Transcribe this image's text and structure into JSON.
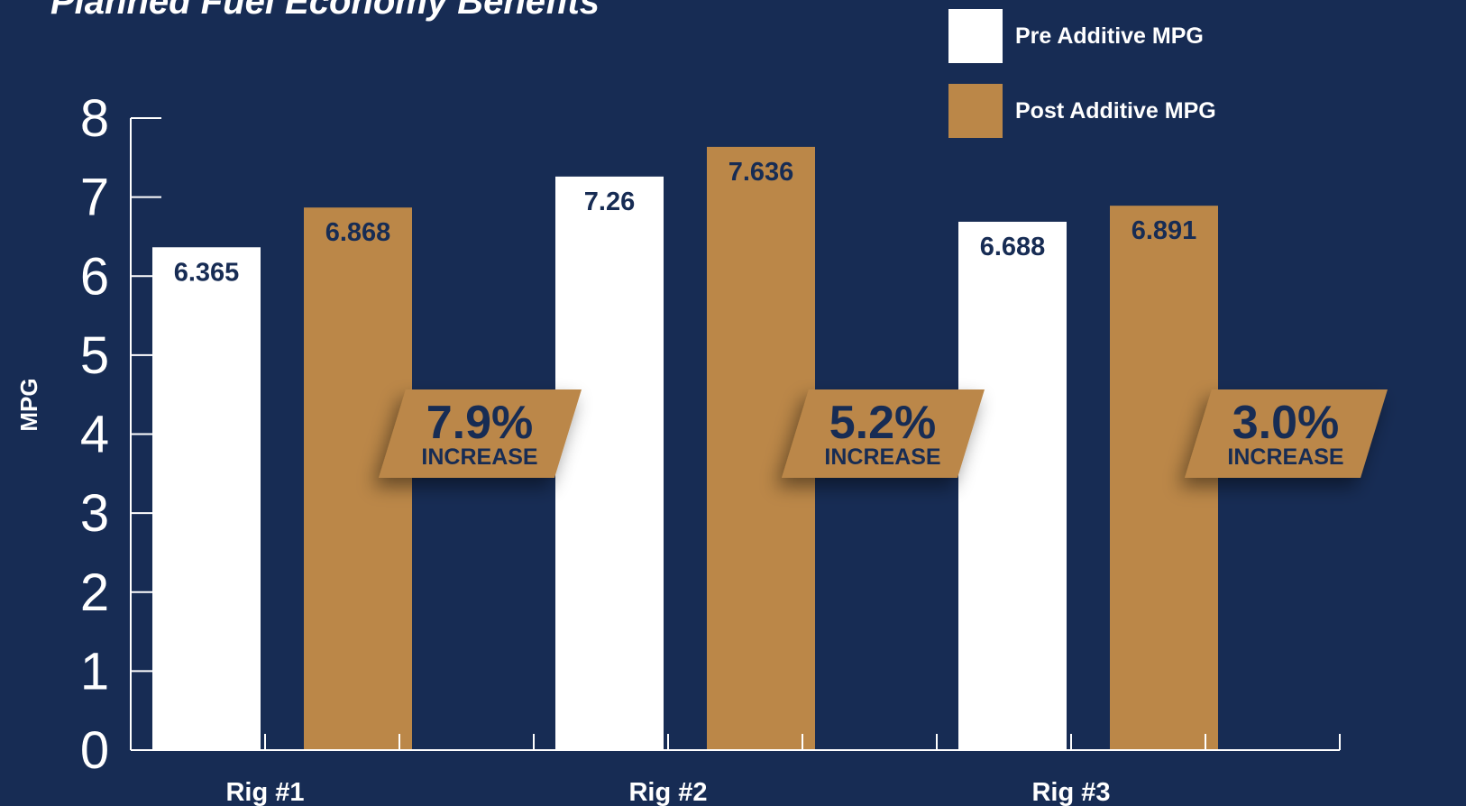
{
  "header": {
    "title": "Planned Fuel Economy Benefits"
  },
  "legend": {
    "items": [
      {
        "label": "Pre Additive MPG",
        "color": "#ffffff"
      },
      {
        "label": "Post Additive MPG",
        "color": "#bb8748"
      }
    ]
  },
  "chart_data": {
    "type": "bar",
    "title": "Planned Fuel Economy Benefits",
    "xlabel": "",
    "ylabel": "MPG",
    "ylim": [
      0,
      8
    ],
    "yticks": [
      0,
      1,
      2,
      3,
      4,
      5,
      6,
      7,
      8
    ],
    "categories": [
      "Rig #1",
      "Rig #2",
      "Rig #3"
    ],
    "series": [
      {
        "name": "Pre Additive MPG",
        "color": "#ffffff",
        "values": [
          6.365,
          7.26,
          6.688
        ],
        "labels": [
          "6.365",
          "7.26",
          "6.688"
        ]
      },
      {
        "name": "Post Additive MPG",
        "color": "#bb8748",
        "values": [
          6.868,
          7.636,
          6.891
        ],
        "labels": [
          "6.868",
          "7.636",
          "6.891"
        ]
      }
    ],
    "annotations": [
      {
        "value": "7.9%",
        "text": "INCREASE"
      },
      {
        "value": "5.2%",
        "text": "INCREASE"
      },
      {
        "value": "3.0%",
        "text": "INCREASE"
      }
    ],
    "grid": false,
    "legend_position": "top-right"
  },
  "colors": {
    "background": "#172c54",
    "accent": "#bb8748",
    "axis": "#ffffff",
    "label_text": "#172c54"
  }
}
